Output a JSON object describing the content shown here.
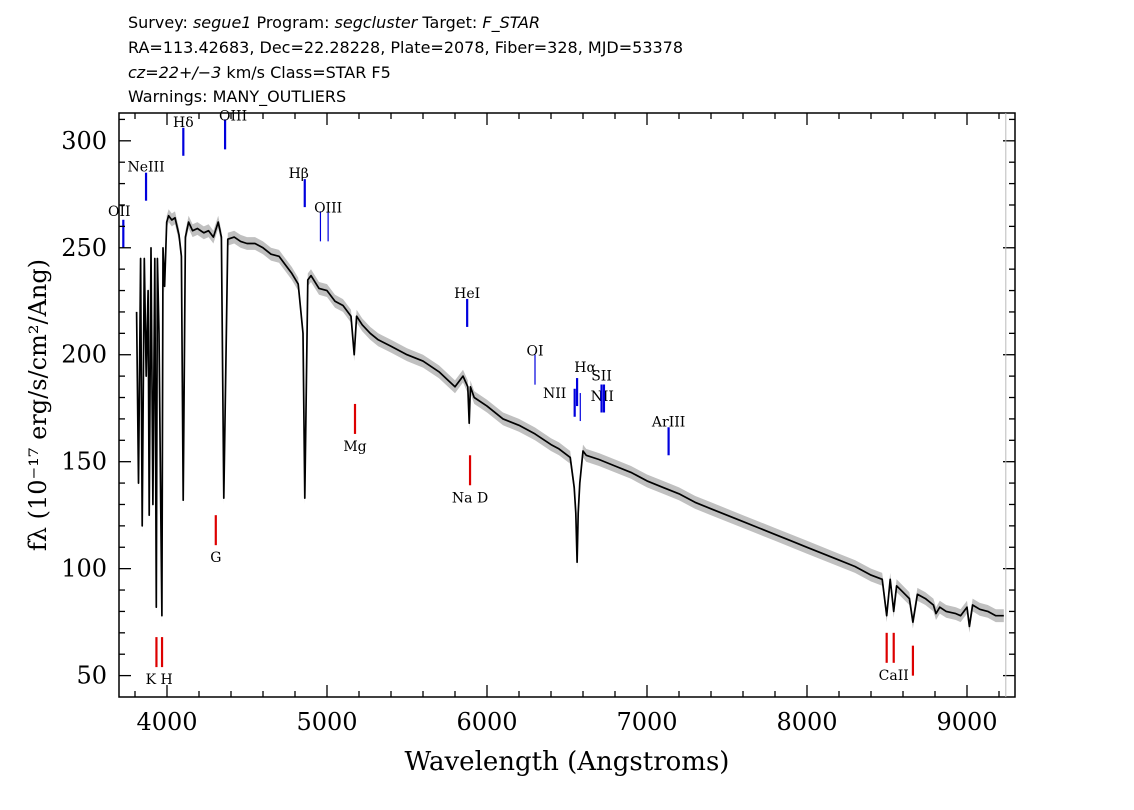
{
  "header": {
    "line1": {
      "survey_label": "Survey: ",
      "survey": "segue1",
      "program_label": " Program: ",
      "program": "segcluster",
      "target_label": " Target: ",
      "target": "F_STAR"
    },
    "line2": "RA=113.42683, Dec=22.28228, Plate=2078, Fiber=328, MJD=53378",
    "line3": {
      "cz": "cz=22+/−3",
      "cz_rest": " km/s Class=STAR F5"
    },
    "line4": "Warnings: MANY_OUTLIERS"
  },
  "chart_data": {
    "type": "line",
    "xlabel": "Wavelength (Angstroms)",
    "ylabel": "fλ (10⁻¹⁷ erg/s/cm²/Ang)",
    "xlim": [
      3700,
      9300
    ],
    "ylim": [
      40,
      313
    ],
    "x_ticks": [
      4000,
      5000,
      6000,
      7000,
      8000,
      9000
    ],
    "y_ticks": [
      50,
      100,
      150,
      200,
      250,
      300
    ],
    "x_tick_labels": [
      "4000",
      "5000",
      "6000",
      "7000",
      "8000",
      "9000"
    ],
    "y_tick_labels": [
      "50",
      "100",
      "150",
      "200",
      "250",
      "300"
    ],
    "grid": false,
    "series": [
      {
        "color": "#000000",
        "error_band_color": "#b0b0b0",
        "x": [
          3810,
          3822,
          3835,
          3845,
          3858,
          3870,
          3882,
          3889,
          3900,
          3912,
          3924,
          3933,
          3940,
          3950,
          3960,
          3968,
          3975,
          3985,
          3998,
          4010,
          4030,
          4050,
          4075,
          4090,
          4101,
          4115,
          4135,
          4160,
          4190,
          4230,
          4260,
          4290,
          4320,
          4340,
          4355,
          4380,
          4420,
          4460,
          4500,
          4550,
          4600,
          4650,
          4700,
          4740,
          4780,
          4820,
          4850,
          4861,
          4880,
          4900,
          4950,
          5000,
          5050,
          5100,
          5150,
          5170,
          5185,
          5220,
          5270,
          5320,
          5400,
          5500,
          5600,
          5700,
          5800,
          5850,
          5880,
          5889,
          5896,
          5920,
          6000,
          6100,
          6200,
          6300,
          6400,
          6450,
          6520,
          6545,
          6555,
          6563,
          6570,
          6580,
          6600,
          6620,
          6700,
          6800,
          6900,
          7000,
          7100,
          7200,
          7300,
          7400,
          7500,
          7600,
          7700,
          7800,
          7900,
          8000,
          8100,
          8200,
          8300,
          8400,
          8470,
          8498,
          8520,
          8542,
          8560,
          8600,
          8640,
          8662,
          8690,
          8740,
          8790,
          8806,
          8830,
          8870,
          8930,
          8960,
          9000,
          9015,
          9035,
          9080,
          9130,
          9180,
          9230
        ],
        "y": [
          220,
          140,
          245,
          120,
          245,
          190,
          230,
          125,
          250,
          130,
          245,
          82,
          245,
          210,
          135,
          78,
          250,
          232,
          262,
          265,
          263,
          264,
          256,
          246,
          132,
          255,
          262,
          258,
          259,
          257,
          258,
          255,
          262,
          255,
          133,
          254,
          255,
          253,
          252,
          252,
          250,
          247,
          246,
          242,
          238,
          233,
          210,
          133,
          235,
          237,
          231,
          230,
          225,
          223,
          218,
          200,
          218,
          214,
          210,
          207,
          204,
          200,
          197,
          192,
          185,
          190,
          185,
          168,
          185,
          180,
          176,
          170,
          167,
          163,
          158,
          156,
          152,
          138,
          126,
          103,
          126,
          140,
          155,
          153,
          151,
          148,
          145,
          141,
          138,
          135,
          131,
          128,
          125,
          122,
          119,
          116,
          113,
          110,
          107,
          104,
          101,
          97,
          95,
          78,
          95,
          80,
          92,
          89,
          86,
          75,
          88,
          86,
          83,
          79,
          82,
          80,
          79,
          78,
          82,
          73,
          83,
          81,
          80,
          78,
          78
        ]
      }
    ],
    "lines": {
      "emission_color": "#0000dd",
      "absorption_color": "#dd0000",
      "emission": [
        {
          "label": "OII",
          "wavelength": 3727
        },
        {
          "label": "NeIII",
          "wavelength": 3869
        },
        {
          "label": "Hδ",
          "wavelength": 4102
        },
        {
          "label": "OIII",
          "wavelength": 4363
        },
        {
          "label": "Hβ",
          "wavelength": 4861
        },
        {
          "label": "OIII",
          "wavelength": 4959
        },
        {
          "label": "OIII",
          "wavelength": 5007
        },
        {
          "label": "HeI",
          "wavelength": 5876
        },
        {
          "label": "OI",
          "wavelength": 6300
        },
        {
          "label": "NII",
          "wavelength": 6548
        },
        {
          "label": "Hα",
          "wavelength": 6563
        },
        {
          "label": "NII",
          "wavelength": 6583
        },
        {
          "label": "SII",
          "wavelength": 6716
        },
        {
          "label": "SII",
          "wavelength": 6731
        },
        {
          "label": "ArIII",
          "wavelength": 7135
        }
      ],
      "absorption": [
        {
          "label": "K",
          "wavelength": 3934
        },
        {
          "label": "H",
          "wavelength": 3969
        },
        {
          "label": "G",
          "wavelength": 4305
        },
        {
          "label": "Mg",
          "wavelength": 5175
        },
        {
          "label": "Na D",
          "wavelength": 5894
        },
        {
          "label": "CaII",
          "wavelength": 8498
        },
        {
          "label": "CaII",
          "wavelength": 8542
        },
        {
          "label": "CaII",
          "wavelength": 8662
        }
      ]
    }
  }
}
